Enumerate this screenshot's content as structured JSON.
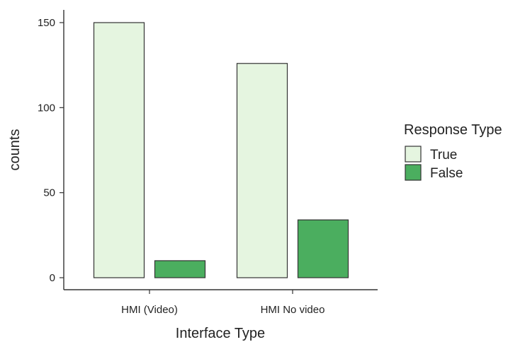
{
  "chart_data": {
    "type": "bar",
    "title": "",
    "xlabel": "Interface Type",
    "ylabel": "counts",
    "categories": [
      "HMI (Video)",
      "HMI No video"
    ],
    "series": [
      {
        "name": "True",
        "values": [
          150,
          126
        ],
        "color": "#e5f5e0"
      },
      {
        "name": "False",
        "values": [
          10,
          34
        ],
        "color": "#4bae5f"
      }
    ],
    "ylim": [
      0,
      157
    ],
    "yticks": [
      0,
      50,
      100,
      150
    ],
    "grid": false,
    "legend": {
      "title": "Response Type",
      "position": "right"
    }
  }
}
